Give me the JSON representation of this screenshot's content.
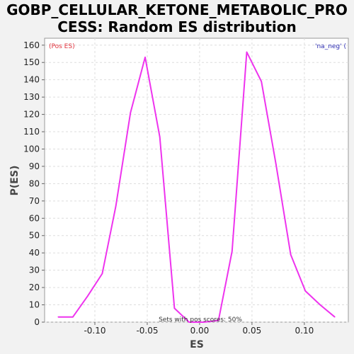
{
  "chart_data": {
    "type": "line",
    "title": "GOBP_CELLULAR_KETONE_METABOLIC_PRO\nCESS: Random ES distribution",
    "xlabel": "ES",
    "ylabel": "P(ES)",
    "xlim": [
      -0.148,
      0.142
    ],
    "ylim": [
      0,
      164
    ],
    "xticks": [
      -0.1,
      -0.05,
      0.0,
      0.05,
      0.1
    ],
    "xtick_labels": [
      "-0.10",
      "-0.05",
      "0.00",
      "0.05",
      "0.10"
    ],
    "yticks": [
      0,
      10,
      20,
      30,
      40,
      50,
      60,
      70,
      80,
      90,
      100,
      110,
      120,
      130,
      140,
      150,
      160
    ],
    "grid": true,
    "legend": [
      {
        "label": "(Pos ES)",
        "color": "#e0303a",
        "position": "top-left"
      },
      {
        "label": "'na_neg' (",
        "color": "#2a2ab0",
        "position": "top-right"
      }
    ],
    "annotation": "Sets with pos scores: 50%",
    "series": [
      {
        "color": "#ee33ee",
        "x": [
          -0.135,
          -0.121,
          -0.107,
          -0.093,
          -0.08,
          -0.066,
          -0.052,
          -0.038,
          -0.024,
          -0.01,
          0.004,
          0.018,
          0.031,
          0.045,
          0.059,
          0.073,
          0.087,
          0.101,
          0.115,
          0.129
        ],
        "y": [
          3,
          3,
          15,
          28,
          67,
          121,
          153,
          107,
          8,
          0,
          0,
          1,
          41,
          156,
          139,
          91,
          39,
          18,
          10,
          3
        ]
      }
    ]
  }
}
